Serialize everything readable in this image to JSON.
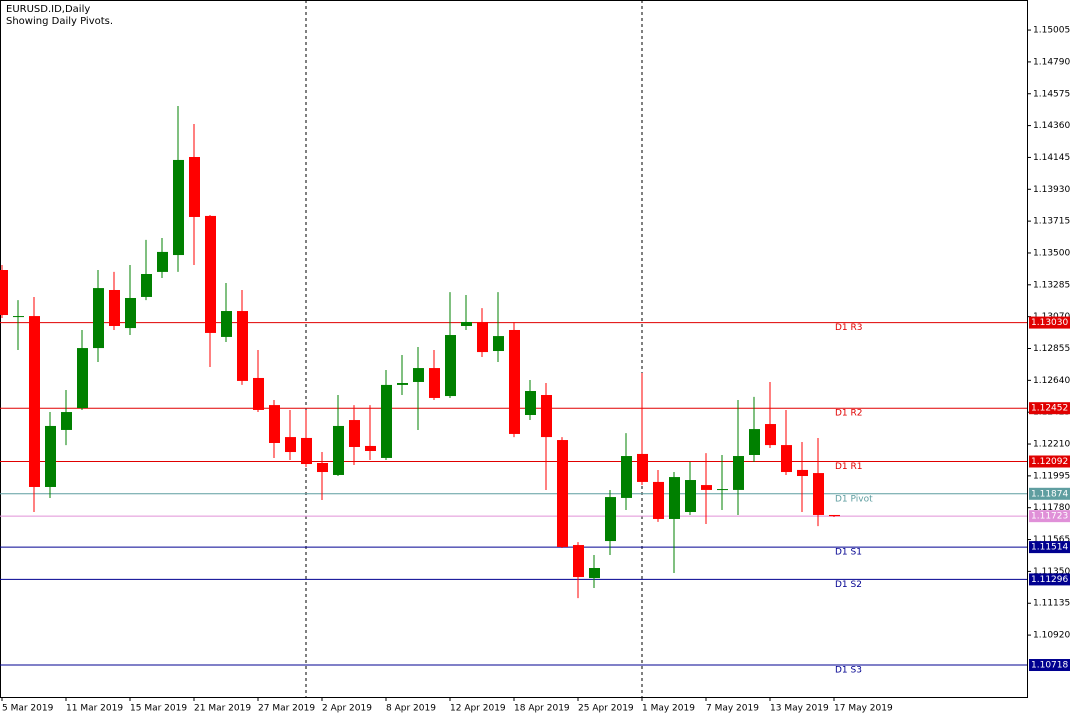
{
  "chart_data": {
    "type": "candlestick",
    "title": "EURUSD.ID,Daily",
    "subtitle": "Showing Daily Pivots.",
    "up_color": "#008000",
    "down_color": "#ff0000",
    "categories": [
      "5 Mar 2019",
      null,
      null,
      null,
      "11 Mar 2019",
      null,
      null,
      null,
      "15 Mar 2019",
      null,
      null,
      null,
      "21 Mar 2019",
      null,
      null,
      null,
      "27 Mar 2019",
      null,
      null,
      null,
      "2 Apr 2019",
      null,
      null,
      null,
      "8 Apr 2019",
      null,
      null,
      null,
      "12 Apr 2019",
      null,
      null,
      null,
      "18 Apr 2019",
      null,
      null,
      null,
      "25 Apr 2019",
      null,
      null,
      null,
      "1 May 2019",
      null,
      null,
      null,
      "7 May 2019",
      null,
      null,
      null,
      "13 May 2019",
      null,
      null,
      null,
      "17 May 2019"
    ],
    "open": [
      1.13385,
      1.13068,
      1.13074,
      1.1192,
      1.12305,
      1.12453,
      1.12858,
      1.1325,
      1.12993,
      1.13203,
      1.13372,
      1.13486,
      1.14148,
      1.1375,
      1.12933,
      1.13108,
      1.12656,
      1.12473,
      1.12257,
      1.12251,
      1.12082,
      1.12001,
      1.12372,
      1.12197,
      1.12116,
      1.12609,
      1.12629,
      1.12723,
      1.12534,
      1.13007,
      1.13034,
      1.12838,
      1.1298,
      1.12406,
      1.12541,
      1.12237,
      1.11528,
      1.11305,
      1.11555,
      1.11846,
      1.12143,
      1.11954,
      1.11704,
      1.11751,
      1.11933,
      1.119,
      1.119,
      1.12136,
      1.12345,
      1.12203,
      1.12035,
      1.12014,
      1.11731
    ],
    "high": [
      1.13419,
      1.13182,
      1.13203,
      1.12426,
      1.12575,
      1.1298,
      1.13385,
      1.13372,
      1.13419,
      1.13588,
      1.13601,
      1.14492,
      1.14371,
      1.13756,
      1.13297,
      1.1325,
      1.12845,
      1.12507,
      1.1244,
      1.1244,
      1.12156,
      1.12541,
      1.12473,
      1.12473,
      1.1271,
      1.12811,
      1.12865,
      1.12845,
      1.13236,
      1.13216,
      1.13128,
      1.13236,
      1.13034,
      1.12642,
      1.12622,
      1.12257,
      1.11548,
      1.11461,
      1.119,
      1.12284,
      1.1269,
      1.12035,
      1.12021,
      1.12089,
      1.12149,
      1.12136,
      1.12507,
      1.12528,
      1.12629,
      1.1244,
      1.12224,
      1.12251,
      1.11731
    ],
    "low": [
      1.13061,
      1.12845,
      1.11751,
      1.11846,
      1.12203,
      1.1244,
      1.12764,
      1.1298,
      1.12946,
      1.13182,
      1.13331,
      1.13372,
      1.13419,
      1.1273,
      1.12899,
      1.12609,
      1.12426,
      1.12116,
      1.12102,
      1.12055,
      1.11832,
      1.11994,
      1.12068,
      1.12102,
      1.12102,
      1.12541,
      1.12305,
      1.12507,
      1.12521,
      1.1298,
      1.12798,
      1.12764,
      1.12257,
      1.12372,
      1.119,
      1.11508,
      1.1117,
      1.11238,
      1.11461,
      1.11765,
      1.11933,
      1.11684,
      1.11339,
      1.11731,
      1.1167,
      1.11765,
      1.11731,
      1.12089,
      1.12183,
      1.12001,
      1.11751,
      1.11656,
      1.11717
    ],
    "close": [
      1.13081,
      1.13074,
      1.1192,
      1.12332,
      1.12426,
      1.12858,
      1.13263,
      1.13007,
      1.13196,
      1.13358,
      1.13507,
      1.14128,
      1.13743,
      1.1296,
      1.13108,
      1.12636,
      1.1244,
      1.12217,
      1.12156,
      1.12075,
      1.12021,
      1.12332,
      1.1219,
      1.12163,
      1.12609,
      1.12622,
      1.12723,
      1.12521,
      1.12946,
      1.13034,
      1.12831,
      1.12939,
      1.12278,
      1.12568,
      1.12257,
      1.11515,
      1.11312,
      1.11373,
      1.11852,
      1.12129,
      1.11954,
      1.11704,
      1.11987,
      1.11967,
      1.119,
      1.11906,
      1.12129,
      1.12311,
      1.12203,
      1.12021,
      1.11994,
      1.11731,
      1.11723
    ],
    "ylim": [
      1.10502,
      1.15208
    ],
    "yticks": [
      1.15005,
      {
        "value": 1.1479,
        "label": "1.14790"
      },
      1.14575,
      {
        "value": 1.1436,
        "label": "1.14360"
      },
      1.14145,
      {
        "value": 1.1393,
        "label": "1.13930"
      },
      1.13715,
      {
        "value": 1.135,
        "label": "1.13500"
      },
      1.13285,
      {
        "value": 1.1307,
        "label": "1.13070"
      },
      1.12855,
      {
        "value": 1.1264,
        "label": "1.12640"
      },
      1.12425,
      {
        "value": 1.1221,
        "label": "1.12210"
      },
      1.11995,
      {
        "value": 1.1178,
        "label": "1.11780"
      },
      1.11565,
      {
        "value": 1.1135,
        "label": "1.11350"
      },
      1.11135,
      {
        "value": 1.1092,
        "label": "1.10920"
      }
    ],
    "levels": [
      {
        "name": "D1 R3",
        "value": 1.1303,
        "label": "1.13030",
        "color": "#e00000"
      },
      {
        "name": "D1 R2",
        "value": 1.12452,
        "label": "1.12452",
        "color": "#e00000"
      },
      {
        "name": "D1 R1",
        "value": 1.12092,
        "label": "1.12092",
        "color": "#e00000"
      },
      {
        "name": "D1 Pivot",
        "value": 1.11874,
        "label": "1.11874",
        "color": "#5f9ea0"
      },
      {
        "name": "D1 S1",
        "value": 1.11514,
        "label": "1.11514",
        "color": "#000090"
      },
      {
        "name": "D1 S2",
        "value": 1.11296,
        "label": "1.11296",
        "color": "#000090"
      },
      {
        "name": "D1 S3",
        "value": 1.10718,
        "label": "1.10718",
        "color": "#000090"
      }
    ],
    "current_price": {
      "value": 1.11723,
      "label": "1.11723",
      "color": "#e090d8"
    }
  }
}
